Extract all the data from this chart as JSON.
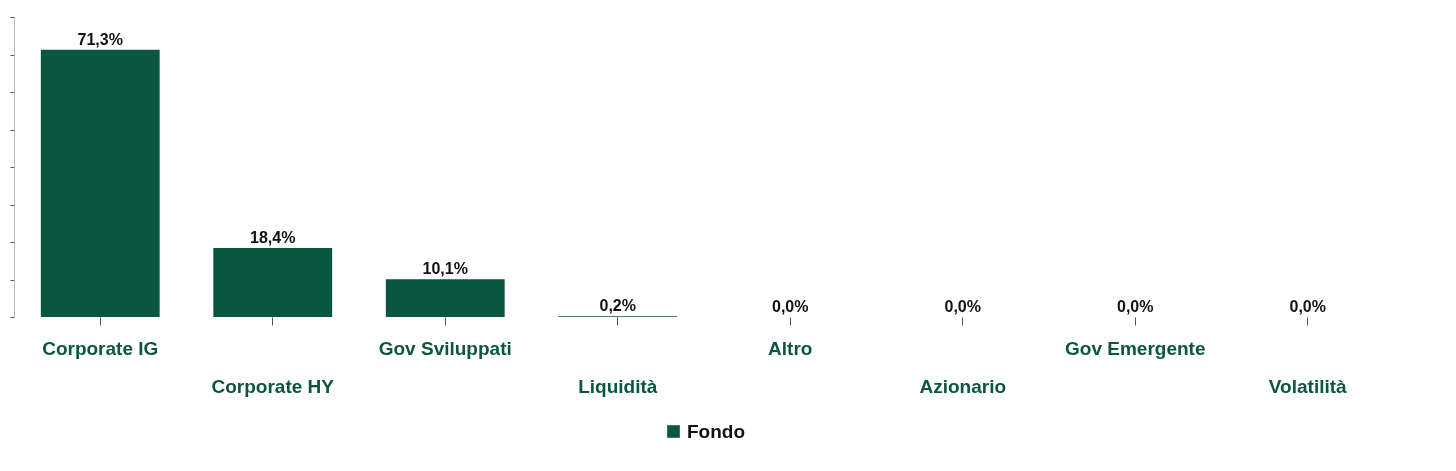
{
  "chart_data": {
    "type": "bar",
    "categories": [
      "Corporate IG",
      "Corporate HY",
      "Gov Sviluppati",
      "Liquidità",
      "Altro",
      "Azionario",
      "Gov Emergente",
      "Volatilità"
    ],
    "series": [
      {
        "name": "Fondo",
        "color": "#0b5640",
        "values": [
          71.3,
          18.4,
          10.1,
          0.2,
          0.0,
          0.0,
          0.0,
          0.0
        ],
        "value_labels": [
          "71,3%",
          "18,4%",
          "10,1%",
          "0,2%",
          "0,0%",
          "0,0%",
          "0,0%",
          "0,0%"
        ]
      }
    ],
    "ylim": [
      0,
      80
    ],
    "yticks": [
      {
        "value": 0,
        "label": null
      },
      {
        "value": 10,
        "label": null
      },
      {
        "value": 20,
        "label": null
      },
      {
        "value": 30,
        "label": null
      },
      {
        "value": 40,
        "label": null
      },
      {
        "value": 50,
        "label": null
      },
      {
        "value": 60,
        "label": null
      },
      {
        "value": 70,
        "label": null
      },
      {
        "value": 80,
        "label": null
      }
    ],
    "grid": false,
    "legend": "bottom"
  }
}
